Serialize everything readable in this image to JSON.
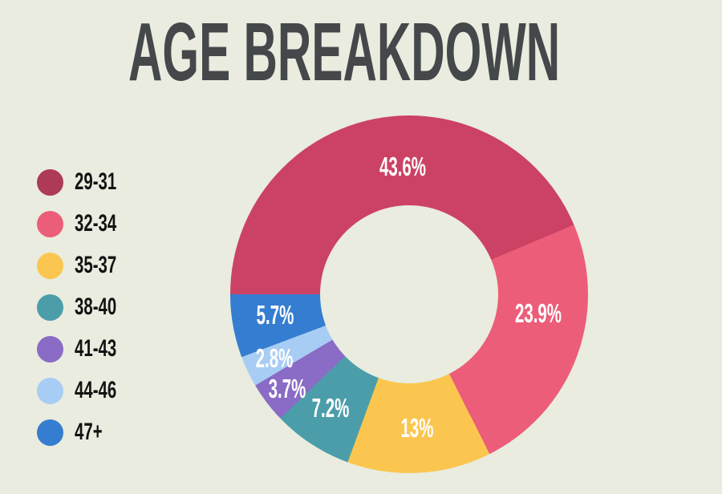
{
  "title": "AGE BREAKDOWN",
  "colors": {
    "background": "#e9ecdf",
    "title_text": "#45484a",
    "slice_label_text": "#ffffff",
    "legend_text": "#121212"
  },
  "chart_data": {
    "type": "pie",
    "subtype": "donut",
    "title": "AGE BREAKDOWN",
    "categories": [
      "29-31",
      "32-34",
      "35-37",
      "38-40",
      "41-43",
      "44-46",
      "47+"
    ],
    "values": [
      43.6,
      23.9,
      13,
      7.2,
      3.7,
      2.8,
      5.7
    ],
    "labels": [
      "43.6%",
      "23.9%",
      "13%",
      "7.2%",
      "3.7%",
      "2.8%",
      "5.7%"
    ],
    "unit": "%",
    "slice_colors": [
      "#cc4264",
      "#ec5d79",
      "#fbc64f",
      "#4b9ea9",
      "#8a6bc6",
      "#a7cdf4",
      "#357dd0"
    ],
    "legend_dot_colors": [
      "#ad3a57",
      "#ec5d79",
      "#fbc64f",
      "#4b9ea9",
      "#8a6bc6",
      "#a7cdf4",
      "#357dd0"
    ],
    "start_angle_clockwise_from_top_deg": 270,
    "direction": "clockwise",
    "legend_position": "left",
    "labels_inside_slices": true
  }
}
